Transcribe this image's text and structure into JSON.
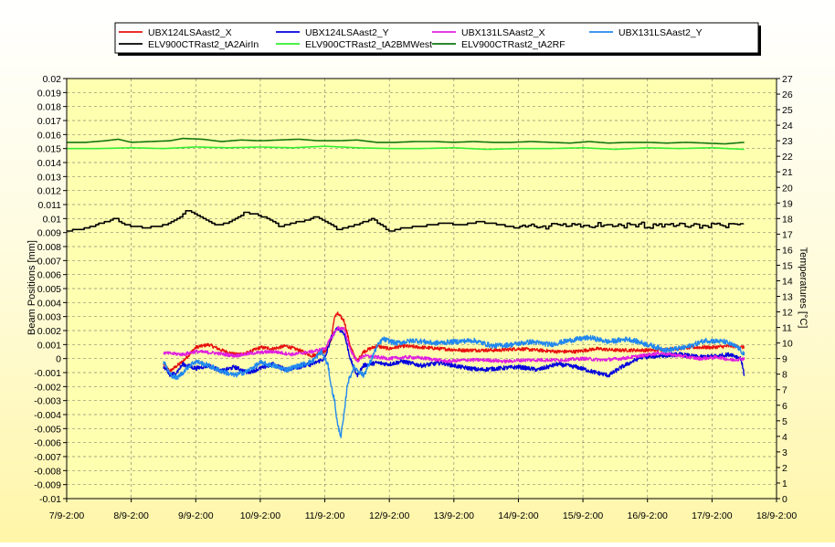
{
  "chart_data": {
    "type": "line",
    "title": "",
    "xlabel": "",
    "ylabel": "Beam Positions [mm]",
    "y2label": "Temperatures [°C]",
    "grid": true,
    "legend_placement": "top",
    "x_ticks": [
      "7/9-2:00",
      "8/9-2:00",
      "9/9-2:00",
      "10/9-2:00",
      "11/9-2:00",
      "12/9-2:00",
      "13/9-2:00",
      "14/9-2:00",
      "15/9-2:00",
      "16/9-2:00",
      "17/9-2:00",
      "18/9-2:00"
    ],
    "xlim_days": [
      0,
      11
    ],
    "ylim": [
      -0.01,
      0.02
    ],
    "y_step": 0.001,
    "y2lim": [
      0,
      27
    ],
    "y2_step": 1,
    "series": [
      {
        "name": "UBX124LSAast2_X",
        "axis": "left",
        "color": "#e81010",
        "noise": 0.00012,
        "points": [
          [
            1.5,
            -0.0004
          ],
          [
            1.6,
            -0.0009
          ],
          [
            1.8,
            -0.0002
          ],
          [
            2.0,
            0.0008
          ],
          [
            2.2,
            0.001
          ],
          [
            2.4,
            0.0006
          ],
          [
            2.6,
            0.0003
          ],
          [
            2.8,
            0.0004
          ],
          [
            3.0,
            0.0008
          ],
          [
            3.2,
            0.0007
          ],
          [
            3.4,
            0.0009
          ],
          [
            3.6,
            0.0006
          ],
          [
            3.8,
            0.0002
          ],
          [
            4.0,
            0.0005
          ],
          [
            4.1,
            0.0013
          ],
          [
            4.15,
            0.003
          ],
          [
            4.2,
            0.0032
          ],
          [
            4.3,
            0.0027
          ],
          [
            4.4,
            0.0008
          ],
          [
            4.5,
            -0.0002
          ],
          [
            4.6,
            0.0005
          ],
          [
            4.8,
            0.0009
          ],
          [
            5.0,
            0.0007
          ],
          [
            5.2,
            0.0009
          ],
          [
            5.5,
            0.0008
          ],
          [
            5.8,
            0.0007
          ],
          [
            6.1,
            0.0006
          ],
          [
            6.4,
            0.0006
          ],
          [
            6.7,
            0.0006
          ],
          [
            7.0,
            0.0007
          ],
          [
            7.3,
            0.0006
          ],
          [
            7.6,
            0.0005
          ],
          [
            7.9,
            0.0005
          ],
          [
            8.2,
            0.0007
          ],
          [
            8.5,
            0.0006
          ],
          [
            8.8,
            0.0006
          ],
          [
            9.1,
            0.0006
          ],
          [
            9.4,
            0.0007
          ],
          [
            9.7,
            0.0008
          ],
          [
            10.0,
            0.0008
          ],
          [
            10.3,
            0.0009
          ],
          [
            10.5,
            0.0008
          ]
        ]
      },
      {
        "name": "UBX124LSAast2_Y",
        "axis": "left",
        "color": "#0000dd",
        "noise": 0.00015,
        "points": [
          [
            1.5,
            -0.0006
          ],
          [
            1.6,
            -0.0012
          ],
          [
            1.7,
            -0.001
          ],
          [
            1.8,
            -0.0004
          ],
          [
            2.0,
            -0.0007
          ],
          [
            2.2,
            -0.0005
          ],
          [
            2.4,
            -0.0009
          ],
          [
            2.6,
            -0.0006
          ],
          [
            2.8,
            -0.001
          ],
          [
            3.0,
            -0.0007
          ],
          [
            3.2,
            -0.0004
          ],
          [
            3.4,
            -0.0008
          ],
          [
            3.6,
            -0.0006
          ],
          [
            3.8,
            -0.0004
          ],
          [
            4.0,
            0.0
          ],
          [
            4.1,
            0.0015
          ],
          [
            4.2,
            0.0022
          ],
          [
            4.3,
            0.0018
          ],
          [
            4.4,
            -0.0001
          ],
          [
            4.5,
            -0.0012
          ],
          [
            4.6,
            -0.0005
          ],
          [
            4.8,
            -0.0003
          ],
          [
            5.0,
            -0.0004
          ],
          [
            5.2,
            -0.0002
          ],
          [
            5.5,
            -0.0005
          ],
          [
            5.8,
            -0.0003
          ],
          [
            6.1,
            -0.0006
          ],
          [
            6.4,
            -0.0008
          ],
          [
            6.7,
            -0.0007
          ],
          [
            7.0,
            -0.0006
          ],
          [
            7.3,
            -0.0008
          ],
          [
            7.6,
            -0.0004
          ],
          [
            7.9,
            -0.0006
          ],
          [
            8.2,
            -0.001
          ],
          [
            8.4,
            -0.0012
          ],
          [
            8.6,
            -0.0006
          ],
          [
            8.9,
            0.0001
          ],
          [
            9.2,
            0.0002
          ],
          [
            9.5,
            0.0003
          ],
          [
            9.8,
            0.0001
          ],
          [
            10.1,
            0.0002
          ],
          [
            10.3,
            0.0003
          ],
          [
            10.45,
            0.0
          ],
          [
            10.5,
            -0.0012
          ]
        ]
      },
      {
        "name": "UBX131LSAast2_X",
        "axis": "left",
        "color": "#e020e0",
        "noise": 0.00012,
        "points": [
          [
            1.5,
            0.0004
          ],
          [
            1.8,
            0.0003
          ],
          [
            2.0,
            0.0005
          ],
          [
            2.3,
            0.0004
          ],
          [
            2.6,
            0.0002
          ],
          [
            2.9,
            0.0004
          ],
          [
            3.2,
            0.0005
          ],
          [
            3.5,
            0.0003
          ],
          [
            3.8,
            0.0005
          ],
          [
            4.0,
            0.0007
          ],
          [
            4.1,
            0.0015
          ],
          [
            4.2,
            0.0022
          ],
          [
            4.3,
            0.0021
          ],
          [
            4.4,
            0.0006
          ],
          [
            4.5,
            -0.0002
          ],
          [
            4.6,
            0.0002
          ],
          [
            4.8,
            0.0001
          ],
          [
            5.0,
            0.0
          ],
          [
            5.3,
            0.0001
          ],
          [
            5.6,
            0.0
          ],
          [
            5.9,
            -0.0002
          ],
          [
            6.2,
            -0.0001
          ],
          [
            6.5,
            -0.0001
          ],
          [
            6.8,
            -0.0002
          ],
          [
            7.1,
            -0.0001
          ],
          [
            7.4,
            -0.0001
          ],
          [
            7.7,
            -0.0001
          ],
          [
            8.0,
            0.0
          ],
          [
            8.3,
            -0.0001
          ],
          [
            8.6,
            0.0
          ],
          [
            8.9,
            0.0002
          ],
          [
            9.2,
            0.0004
          ],
          [
            9.5,
            0.0002
          ],
          [
            9.8,
            0.0
          ],
          [
            10.1,
            0.0001
          ],
          [
            10.3,
            -0.0001
          ],
          [
            10.5,
            0.0
          ]
        ]
      },
      {
        "name": "UBX131LSAast2_Y",
        "axis": "left",
        "color": "#2288ee",
        "noise": 0.00018,
        "points": [
          [
            1.5,
            -0.0002
          ],
          [
            1.6,
            -0.0011
          ],
          [
            1.7,
            -0.0014
          ],
          [
            1.8,
            -0.001
          ],
          [
            1.9,
            -0.0005
          ],
          [
            2.0,
            -0.0002
          ],
          [
            2.2,
            -0.0005
          ],
          [
            2.4,
            -0.0009
          ],
          [
            2.6,
            -0.0012
          ],
          [
            2.8,
            -0.0009
          ],
          [
            3.0,
            -0.0003
          ],
          [
            3.2,
            -0.0005
          ],
          [
            3.4,
            -0.0008
          ],
          [
            3.6,
            -0.0005
          ],
          [
            3.8,
            -0.0002
          ],
          [
            3.95,
            0.0005
          ],
          [
            4.05,
            -0.0005
          ],
          [
            4.1,
            -0.002
          ],
          [
            4.15,
            -0.003
          ],
          [
            4.2,
            -0.0048
          ],
          [
            4.25,
            -0.0055
          ],
          [
            4.3,
            -0.004
          ],
          [
            4.35,
            -0.0018
          ],
          [
            4.45,
            -0.0006
          ],
          [
            4.6,
            -0.0012
          ],
          [
            4.7,
            -0.0003
          ],
          [
            4.8,
            0.0008
          ],
          [
            4.9,
            0.0014
          ],
          [
            5.1,
            0.0011
          ],
          [
            5.4,
            0.0013
          ],
          [
            5.7,
            0.0011
          ],
          [
            6.0,
            0.0012
          ],
          [
            6.3,
            0.0013
          ],
          [
            6.6,
            0.0009
          ],
          [
            6.9,
            0.001
          ],
          [
            7.2,
            0.0012
          ],
          [
            7.5,
            0.001
          ],
          [
            7.8,
            0.0013
          ],
          [
            8.1,
            0.0015
          ],
          [
            8.4,
            0.0012
          ],
          [
            8.7,
            0.0014
          ],
          [
            9.0,
            0.001
          ],
          [
            9.3,
            0.0006
          ],
          [
            9.6,
            0.0008
          ],
          [
            9.9,
            0.0013
          ],
          [
            10.2,
            0.0012
          ],
          [
            10.4,
            0.0008
          ],
          [
            10.5,
            0.0003
          ]
        ]
      },
      {
        "name": "ELV900CTRast2_tA2AirIn",
        "axis": "right",
        "color": "#000000",
        "step": true,
        "noise": 0.0,
        "points": [
          [
            0.0,
            17.2
          ],
          [
            0.3,
            17.4
          ],
          [
            0.6,
            17.8
          ],
          [
            0.75,
            18.0
          ],
          [
            0.9,
            17.6
          ],
          [
            1.2,
            17.4
          ],
          [
            1.4,
            17.5
          ],
          [
            1.6,
            17.7
          ],
          [
            1.75,
            18.1
          ],
          [
            1.85,
            18.5
          ],
          [
            1.95,
            18.4
          ],
          [
            2.1,
            18.0
          ],
          [
            2.3,
            17.6
          ],
          [
            2.5,
            17.7
          ],
          [
            2.65,
            18.1
          ],
          [
            2.75,
            18.4
          ],
          [
            2.9,
            18.3
          ],
          [
            3.1,
            18.0
          ],
          [
            3.3,
            17.5
          ],
          [
            3.5,
            17.7
          ],
          [
            3.7,
            17.9
          ],
          [
            3.85,
            18.1
          ],
          [
            4.0,
            17.8
          ],
          [
            4.2,
            17.3
          ],
          [
            4.4,
            17.5
          ],
          [
            4.6,
            17.8
          ],
          [
            4.75,
            18.0
          ],
          [
            4.85,
            17.6
          ],
          [
            5.0,
            17.2
          ],
          [
            5.2,
            17.4
          ],
          [
            5.5,
            17.5
          ],
          [
            5.8,
            17.7
          ],
          [
            6.1,
            17.6
          ],
          [
            6.4,
            17.8
          ],
          [
            6.7,
            17.6
          ],
          [
            7.0,
            17.4
          ],
          [
            7.3,
            17.5
          ],
          [
            7.6,
            17.6
          ],
          [
            7.9,
            17.5
          ],
          [
            8.2,
            17.6
          ],
          [
            8.5,
            17.5
          ],
          [
            8.8,
            17.6
          ],
          [
            9.1,
            17.5
          ],
          [
            9.4,
            17.6
          ],
          [
            9.7,
            17.5
          ],
          [
            10.0,
            17.6
          ],
          [
            10.3,
            17.5
          ],
          [
            10.5,
            17.5
          ]
        ],
        "jitter_from": 7.0,
        "jitter_amp": 0.18
      },
      {
        "name": "ELV900CTRast2_tA2BMWest",
        "axis": "right",
        "color": "#33ee33",
        "step": false,
        "noise": 0.0,
        "points": [
          [
            0.0,
            22.5
          ],
          [
            0.5,
            22.5
          ],
          [
            1.0,
            22.55
          ],
          [
            1.5,
            22.5
          ],
          [
            2.0,
            22.6
          ],
          [
            2.5,
            22.55
          ],
          [
            3.0,
            22.6
          ],
          [
            3.5,
            22.55
          ],
          [
            4.0,
            22.65
          ],
          [
            4.5,
            22.55
          ],
          [
            5.0,
            22.5
          ],
          [
            5.5,
            22.5
          ],
          [
            6.0,
            22.55
          ],
          [
            6.5,
            22.45
          ],
          [
            7.0,
            22.5
          ],
          [
            7.5,
            22.5
          ],
          [
            8.0,
            22.55
          ],
          [
            8.5,
            22.45
          ],
          [
            9.0,
            22.55
          ],
          [
            9.5,
            22.5
          ],
          [
            10.0,
            22.55
          ],
          [
            10.5,
            22.45
          ]
        ]
      },
      {
        "name": "ELV900CTRast2_tA2RF",
        "axis": "right",
        "color": "#117711",
        "step": false,
        "noise": 0.0,
        "points": [
          [
            0.0,
            22.9
          ],
          [
            0.3,
            22.9
          ],
          [
            0.6,
            23.0
          ],
          [
            0.8,
            23.1
          ],
          [
            1.0,
            22.9
          ],
          [
            1.3,
            22.95
          ],
          [
            1.6,
            23.0
          ],
          [
            1.8,
            23.15
          ],
          [
            2.1,
            23.1
          ],
          [
            2.4,
            22.95
          ],
          [
            2.7,
            23.05
          ],
          [
            3.0,
            23.0
          ],
          [
            3.3,
            23.05
          ],
          [
            3.6,
            23.1
          ],
          [
            3.9,
            23.0
          ],
          [
            4.2,
            23.0
          ],
          [
            4.5,
            23.05
          ],
          [
            4.8,
            22.9
          ],
          [
            5.1,
            22.9
          ],
          [
            5.4,
            22.95
          ],
          [
            5.7,
            22.95
          ],
          [
            6.0,
            22.9
          ],
          [
            6.3,
            22.95
          ],
          [
            6.6,
            22.9
          ],
          [
            6.9,
            22.9
          ],
          [
            7.2,
            22.95
          ],
          [
            7.5,
            22.9
          ],
          [
            7.8,
            22.85
          ],
          [
            8.1,
            22.95
          ],
          [
            8.4,
            22.85
          ],
          [
            8.7,
            22.9
          ],
          [
            9.0,
            22.9
          ],
          [
            9.3,
            22.85
          ],
          [
            9.6,
            22.9
          ],
          [
            9.9,
            22.85
          ],
          [
            10.2,
            22.8
          ],
          [
            10.5,
            22.9
          ]
        ]
      }
    ]
  }
}
